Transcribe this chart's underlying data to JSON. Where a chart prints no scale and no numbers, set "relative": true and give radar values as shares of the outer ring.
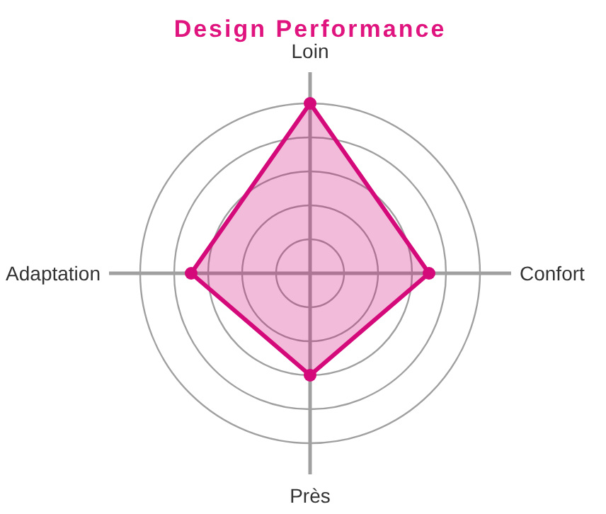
{
  "chart_data": {
    "type": "radar",
    "title": "Design Performance",
    "relative": true,
    "grid": true,
    "marker": "circle",
    "categories": [
      "Loin",
      "Confort",
      "Près",
      "Adaptation"
    ],
    "series": [
      {
        "color": "#d4097a",
        "values": [
          1.0,
          0.7,
          0.6,
          0.7
        ]
      }
    ]
  }
}
